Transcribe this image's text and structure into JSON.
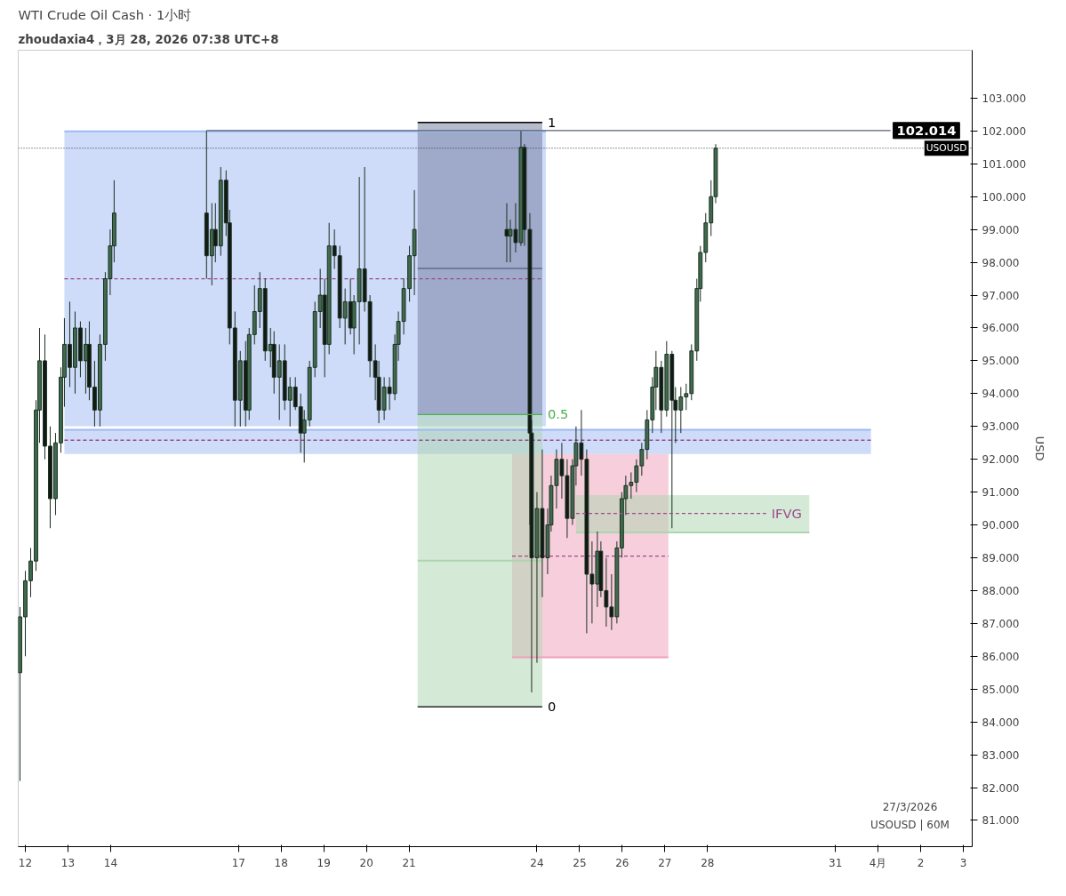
{
  "chart_data": {
    "type": "candlestick",
    "title": "WTI Crude Oil Cash · 1小时",
    "subtitle": "zhoudaxia4，3月 28, 2026 07:38 UTC+8",
    "ylabel": "USD",
    "annotations": [
      "27/3/2026",
      "USOUSD | 60M"
    ],
    "x": [
      "2026-03-11T21:00",
      "2026-03-12T00:00",
      "2026-03-12T03:00",
      "2026-03-12T06:00",
      "2026-03-12T08:00",
      "2026-03-12T11:00",
      "2026-03-12T14:00",
      "2026-03-12T17:00",
      "2026-03-12T20:00",
      "2026-03-12T22:00",
      "2026-03-13T01:00",
      "2026-03-13T04:00",
      "2026-03-13T07:00",
      "2026-03-13T10:00",
      "2026-03-13T12:00",
      "2026-03-13T15:00",
      "2026-03-13T18:00",
      "2026-03-13T21:00",
      "2026-03-13T23:45",
      "2026-03-14T02:00",
      "2026-03-16T06:00",
      "2026-03-16T09:00",
      "2026-03-16T11:00",
      "2026-03-16T14:00",
      "2026-03-16T17:00",
      "2026-03-16T19:00",
      "2026-03-16T22:00",
      "2026-03-17T01:00",
      "2026-03-17T04:00",
      "2026-03-17T06:00",
      "2026-03-17T09:00",
      "2026-03-17T12:00",
      "2026-03-17T15:00",
      "2026-03-17T18:00",
      "2026-03-17T20:00",
      "2026-03-17T23:00",
      "2026-03-18T02:00",
      "2026-03-18T05:00",
      "2026-03-18T08:00",
      "2026-03-18T11:00",
      "2026-03-18T13:00",
      "2026-03-18T16:00",
      "2026-03-18T19:00",
      "2026-03-18T22:00",
      "2026-03-19T00:30",
      "2026-03-19T03:00",
      "2026-03-19T06:00",
      "2026-03-19T09:00",
      "2026-03-19T12:00",
      "2026-03-19T15:00",
      "2026-03-19T17:00",
      "2026-03-19T20:00",
      "2026-03-19T23:00",
      "2026-03-20T02:00",
      "2026-03-20T05:00",
      "2026-03-20T07:00",
      "2026-03-20T10:00",
      "2026-03-20T13:00",
      "2026-03-20T16:00",
      "2026-03-20T18:00",
      "2026-03-20T21:00",
      "2026-03-21T00:15",
      "2026-03-21T03:00",
      "2026-03-23T07:00",
      "2026-03-23T09:00",
      "2026-03-23T12:00",
      "2026-03-23T15:00",
      "2026-03-23T17:00",
      "2026-03-23T20:00",
      "2026-03-23T21:00",
      "2026-03-24T00:00",
      "2026-03-24T03:00",
      "2026-03-24T06:00",
      "2026-03-24T08:00",
      "2026-03-24T11:00",
      "2026-03-24T14:00",
      "2026-03-24T17:00",
      "2026-03-24T20:00",
      "2026-03-24T22:00",
      "2026-03-25T01:00",
      "2026-03-25T04:00",
      "2026-03-25T07:00",
      "2026-03-25T10:00",
      "2026-03-25T12:00",
      "2026-03-25T15:00",
      "2026-03-25T18:00",
      "2026-03-25T21:00",
      "2026-03-25T23:45",
      "2026-03-26T02:00",
      "2026-03-26T05:00",
      "2026-03-26T08:00",
      "2026-03-26T11:00",
      "2026-03-26T14:00",
      "2026-03-26T17:00",
      "2026-03-26T19:00",
      "2026-03-26T22:00",
      "2026-03-27T01:00",
      "2026-03-27T04:00",
      "2026-03-27T06:00",
      "2026-03-27T09:00",
      "2026-03-27T12:00",
      "2026-03-27T15:00",
      "2026-03-27T18:00",
      "2026-03-27T20:00",
      "2026-03-27T23:00",
      "2026-03-28T02:00",
      "2026-03-28T04:36"
    ],
    "ohlc": [
      [
        85.5,
        87.5,
        82.2,
        87.2
      ],
      [
        87.2,
        88.6,
        86.0,
        88.3
      ],
      [
        88.3,
        89.3,
        87.8,
        88.9
      ],
      [
        88.9,
        93.8,
        88.6,
        93.5
      ],
      [
        93.5,
        96.0,
        92.5,
        95.0
      ],
      [
        95.0,
        95.8,
        92.0,
        92.4
      ],
      [
        92.4,
        93.0,
        89.9,
        90.8
      ],
      [
        90.8,
        92.8,
        90.3,
        92.5
      ],
      [
        92.5,
        94.8,
        92.2,
        94.5
      ],
      [
        94.5,
        96.3,
        93.6,
        95.5
      ],
      [
        95.5,
        96.8,
        94.2,
        94.8
      ],
      [
        94.8,
        96.5,
        94.0,
        96.0
      ],
      [
        96.0,
        96.2,
        94.5,
        95.0
      ],
      [
        95.0,
        96.0,
        94.0,
        95.5
      ],
      [
        95.5,
        96.2,
        93.8,
        94.2
      ],
      [
        94.2,
        95.0,
        93.0,
        93.5
      ],
      [
        93.5,
        95.8,
        93.0,
        95.5
      ],
      [
        95.5,
        97.7,
        95.0,
        97.5
      ],
      [
        97.5,
        99.0,
        97.0,
        98.5
      ],
      [
        98.5,
        100.5,
        98.0,
        99.5
      ],
      [
        99.5,
        102.0,
        97.5,
        98.2
      ],
      [
        98.2,
        99.8,
        97.3,
        99.0
      ],
      [
        99.0,
        99.8,
        98.0,
        98.5
      ],
      [
        98.5,
        100.9,
        98.2,
        100.5
      ],
      [
        100.5,
        100.8,
        98.8,
        99.2
      ],
      [
        99.2,
        99.6,
        95.5,
        96.0
      ],
      [
        96.0,
        96.5,
        93.0,
        93.8
      ],
      [
        93.8,
        95.3,
        93.0,
        95.0
      ],
      [
        95.0,
        95.6,
        93.0,
        93.5
      ],
      [
        93.5,
        96.0,
        93.2,
        95.8
      ],
      [
        95.8,
        97.3,
        95.5,
        96.5
      ],
      [
        96.5,
        97.7,
        96.0,
        97.2
      ],
      [
        97.2,
        97.5,
        95.0,
        95.3
      ],
      [
        95.3,
        96.0,
        94.8,
        95.5
      ],
      [
        95.5,
        95.9,
        94.0,
        94.5
      ],
      [
        94.5,
        95.5,
        93.2,
        95.0
      ],
      [
        95.0,
        95.5,
        93.5,
        93.8
      ],
      [
        93.8,
        94.5,
        93.0,
        94.2
      ],
      [
        94.2,
        94.5,
        93.5,
        93.6
      ],
      [
        93.6,
        94.0,
        92.2,
        92.8
      ],
      [
        92.8,
        93.5,
        91.9,
        93.2
      ],
      [
        93.2,
        95.0,
        93.0,
        94.8
      ],
      [
        94.8,
        96.8,
        94.5,
        96.5
      ],
      [
        96.5,
        97.8,
        96.0,
        97.0
      ],
      [
        97.0,
        97.5,
        94.5,
        95.5
      ],
      [
        95.5,
        99.2,
        95.2,
        98.5
      ],
      [
        98.5,
        99.0,
        97.8,
        98.2
      ],
      [
        98.2,
        98.5,
        96.0,
        96.3
      ],
      [
        96.3,
        97.2,
        95.5,
        96.8
      ],
      [
        96.8,
        97.5,
        95.8,
        96.0
      ],
      [
        96.0,
        97.0,
        95.2,
        96.8
      ],
      [
        96.8,
        100.6,
        95.5,
        97.8
      ],
      [
        97.8,
        100.9,
        96.5,
        96.8
      ],
      [
        96.8,
        97.0,
        94.5,
        95.0
      ],
      [
        95.0,
        95.5,
        93.8,
        94.5
      ],
      [
        94.5,
        95.0,
        93.1,
        93.5
      ],
      [
        93.5,
        94.5,
        93.2,
        94.2
      ],
      [
        94.2,
        94.5,
        93.5,
        94.0
      ],
      [
        94.0,
        95.8,
        93.8,
        95.5
      ],
      [
        95.5,
        96.5,
        95.0,
        96.2
      ],
      [
        96.2,
        97.5,
        95.8,
        97.2
      ],
      [
        97.2,
        98.5,
        96.8,
        98.2
      ],
      [
        98.2,
        100.2,
        97.0,
        99.0
      ],
      [
        99.0,
        99.8,
        98.0,
        98.8
      ],
      [
        98.8,
        99.3,
        98.0,
        99.0
      ],
      [
        99.0,
        99.8,
        98.3,
        98.6
      ],
      [
        98.6,
        102.0,
        98.5,
        101.5
      ],
      [
        101.5,
        101.6,
        98.5,
        99.0
      ],
      [
        99.0,
        99.5,
        90.0,
        92.8
      ],
      [
        92.8,
        93.2,
        84.9,
        89.0
      ],
      [
        89.0,
        91.0,
        85.8,
        90.5
      ],
      [
        90.5,
        92.3,
        87.8,
        89.0
      ],
      [
        89.0,
        90.5,
        88.5,
        90.0
      ],
      [
        90.0,
        91.5,
        89.8,
        91.2
      ],
      [
        91.2,
        92.3,
        90.5,
        92.0
      ],
      [
        92.0,
        92.5,
        90.8,
        91.5
      ],
      [
        91.5,
        92.0,
        89.6,
        90.2
      ],
      [
        90.2,
        92.0,
        90.0,
        91.8
      ],
      [
        91.8,
        93.0,
        91.2,
        92.5
      ],
      [
        92.5,
        93.5,
        91.5,
        92.0
      ],
      [
        92.0,
        92.3,
        86.7,
        88.5
      ],
      [
        88.5,
        89.5,
        87.0,
        88.2
      ],
      [
        88.2,
        89.8,
        87.5,
        89.2
      ],
      [
        89.2,
        89.5,
        87.8,
        88.0
      ],
      [
        88.0,
        89.0,
        86.9,
        87.5
      ],
      [
        87.5,
        88.5,
        86.8,
        87.2
      ],
      [
        87.2,
        89.5,
        87.0,
        89.3
      ],
      [
        89.3,
        91.0,
        89.0,
        90.8
      ],
      [
        90.8,
        91.5,
        90.3,
        91.2
      ],
      [
        91.2,
        91.6,
        90.8,
        91.3
      ],
      [
        91.3,
        92.0,
        91.0,
        91.8
      ],
      [
        91.8,
        92.5,
        91.5,
        92.3
      ],
      [
        92.3,
        93.5,
        92.0,
        93.2
      ],
      [
        93.2,
        94.5,
        92.8,
        94.2
      ],
      [
        94.2,
        95.3,
        93.5,
        94.8
      ],
      [
        94.8,
        95.0,
        92.8,
        93.5
      ],
      [
        93.5,
        95.6,
        93.3,
        95.2
      ],
      [
        95.2,
        95.3,
        89.9,
        93.8
      ],
      [
        93.8,
        94.2,
        92.5,
        93.5
      ],
      [
        93.5,
        94.2,
        92.8,
        93.9
      ],
      [
        93.9,
        94.3,
        93.5,
        94.0
      ],
      [
        94.0,
        95.5,
        93.8,
        95.3
      ],
      [
        95.3,
        97.5,
        95.0,
        97.2
      ],
      [
        97.2,
        98.5,
        96.8,
        98.3
      ],
      [
        98.3,
        99.5,
        98.0,
        99.2
      ],
      [
        99.2,
        100.5,
        98.8,
        100.0
      ],
      [
        100.0,
        101.6,
        99.8,
        101.477
      ]
    ],
    "series": [
      {
        "type": "line",
        "line_style": "solid",
        "color": "#9db8f3",
        "x": [
          "2026-03-12T22:00",
          "2026-03-24T05:00"
        ],
        "values": [
          101.99,
          101.99
        ],
        "lower": [
          93.01,
          93.01
        ],
        "upper": [
          101.99,
          101.99
        ]
      },
      {
        "type": "line",
        "line_style": "solid",
        "color": "#9db8f3",
        "x": [
          "2026-03-12T22:00",
          "2026-03-31T20:00"
        ],
        "values": [
          92.9,
          92.9
        ],
        "lower": [
          92.16,
          92.16
        ],
        "upper": [
          92.9,
          92.9
        ]
      },
      {
        "type": "line",
        "line_style": "solid",
        "color": "#ef9fba",
        "x": [
          "2026-03-23T10:00",
          "2026-03-27T02:00"
        ],
        "values": [
          85.97,
          85.97
        ],
        "lower": [
          85.97,
          85.97
        ],
        "upper": [
          92.16,
          92.16
        ]
      },
      {
        "type": "line",
        "line_style": "solid",
        "color": "#acd6ae",
        "x": [
          "2026-03-24T22:00",
          "2026-03-30T09:20"
        ],
        "values": [
          89.77,
          89.77
        ],
        "lower": [
          89.77,
          89.77
        ],
        "upper": [
          90.91,
          90.91
        ]
      },
      {
        "type": "line",
        "line_style": "solid",
        "color": "#6f7a9c",
        "x": [
          "2026-03-21T04:50",
          "2026-03-24T03:00"
        ],
        "values": [
          97.81,
          97.81
        ],
        "lower": [
          93.36,
          93.36
        ],
        "upper": [
          102.26,
          102.26
        ]
      },
      {
        "type": "line",
        "line_style": "solid",
        "color": "#acd6ae",
        "x": [
          "2026-03-21T04:50",
          "2026-03-24T03:00"
        ],
        "values": [
          88.91,
          88.91
        ],
        "lower": [
          84.46,
          84.46
        ],
        "upper": [
          93.36,
          93.36
        ]
      },
      {
        "type": "line",
        "line_style": "dashed",
        "color": "#9c4a8c",
        "x": [
          "2026-03-12T22:00",
          "2026-03-24T03:30"
        ],
        "values": [
          97.5,
          97.5
        ]
      },
      {
        "type": "line",
        "line_style": "dashed",
        "color": "#9c4a8c",
        "x": [
          "2026-03-12T22:00",
          "2026-03-31T20:00"
        ],
        "values": [
          92.58,
          92.58
        ]
      },
      {
        "type": "line",
        "line_style": "dashed",
        "color": "#9c4a8c",
        "x": [
          "2026-03-23T10:00",
          "2026-03-27T02:00"
        ],
        "values": [
          89.05,
          89.05
        ]
      },
      {
        "type": "line",
        "line_style": "dashed",
        "color": "#9c4a8c",
        "name": "IFVG",
        "x": [
          "2026-03-24T22:00",
          "2026-03-29T09:00"
        ],
        "values": [
          90.35,
          90.35
        ]
      },
      {
        "type": "line",
        "line_style": "solid",
        "color": "#5a6070",
        "x": [
          "2026-03-16T06:00",
          "2026-04-01T07:00"
        ],
        "values": [
          102.014,
          102.014
        ],
        "value_labels": [
          null,
          "102.014"
        ]
      },
      {
        "type": "line",
        "line_style": "solid",
        "color": "#000000",
        "name": "1",
        "x": [
          "2026-03-21T04:50",
          "2026-03-24T03:00"
        ],
        "values": [
          102.26,
          102.26
        ]
      },
      {
        "type": "line",
        "line_style": "solid",
        "color": "#4caf50",
        "name": "0.5",
        "x": [
          "2026-03-21T04:50",
          "2026-03-24T03:00"
        ],
        "values": [
          93.36,
          93.36
        ]
      },
      {
        "type": "line",
        "line_style": "solid",
        "color": "#000000",
        "name": "0",
        "x": [
          "2026-03-21T04:50",
          "2026-03-24T03:00"
        ],
        "values": [
          84.46,
          84.46
        ]
      }
    ],
    "ref_lines": [
      {
        "axis": "y",
        "value": 101.477,
        "label": "USOUSD",
        "color": "#333333",
        "line_style": "dotted"
      }
    ],
    "xlim": [
      "2026-03-11T20:00",
      "2026-04-03T05:00"
    ],
    "xticks": [
      {
        "value": "2026-03-12",
        "label": "12"
      },
      {
        "value": "2026-03-13",
        "label": "13"
      },
      {
        "value": "2026-03-14",
        "label": "14"
      },
      {
        "value": "2026-03-17",
        "label": "17"
      },
      {
        "value": "2026-03-18",
        "label": "18"
      },
      {
        "value": "2026-03-19",
        "label": "19"
      },
      {
        "value": "2026-03-20",
        "label": "20"
      },
      {
        "value": "2026-03-21",
        "label": "21"
      },
      {
        "value": "2026-03-24",
        "label": "24"
      },
      {
        "value": "2026-03-25",
        "label": "25"
      },
      {
        "value": "2026-03-26",
        "label": "26"
      },
      {
        "value": "2026-03-27",
        "label": "27"
      },
      {
        "value": "2026-03-28",
        "label": "28"
      },
      {
        "value": "2026-03-31",
        "label": "31"
      },
      {
        "value": "2026-04-01",
        "label": "4月"
      },
      {
        "value": "2026-04-02",
        "label": "2"
      },
      {
        "value": "2026-04-03",
        "label": "3"
      }
    ],
    "ylim": [
      80.2,
      104.46
    ],
    "yticks": [
      {
        "value": 81,
        "label": "81.000"
      },
      {
        "value": 82,
        "label": "82.000"
      },
      {
        "value": 83,
        "label": "83.000"
      },
      {
        "value": 84,
        "label": "84.000"
      },
      {
        "value": 85,
        "label": "85.000"
      },
      {
        "value": 86,
        "label": "86.000"
      },
      {
        "value": 87,
        "label": "87.000"
      },
      {
        "value": 88,
        "label": "88.000"
      },
      {
        "value": 89,
        "label": "89.000"
      },
      {
        "value": 90,
        "label": "90.000"
      },
      {
        "value": 91,
        "label": "91.000"
      },
      {
        "value": 92,
        "label": "92.000"
      },
      {
        "value": 93,
        "label": "93.000"
      },
      {
        "value": 94,
        "label": "94.000"
      },
      {
        "value": 95,
        "label": "95.000"
      },
      {
        "value": 96,
        "label": "96.000"
      },
      {
        "value": 97,
        "label": "97.000"
      },
      {
        "value": 98,
        "label": "98.000"
      },
      {
        "value": 99,
        "label": "99.000"
      },
      {
        "value": 100,
        "label": "100.000"
      },
      {
        "value": 101,
        "label": "101.000"
      },
      {
        "value": 102,
        "label": "102.000"
      },
      {
        "value": 103,
        "label": "103.000"
      }
    ],
    "grid": false
  }
}
